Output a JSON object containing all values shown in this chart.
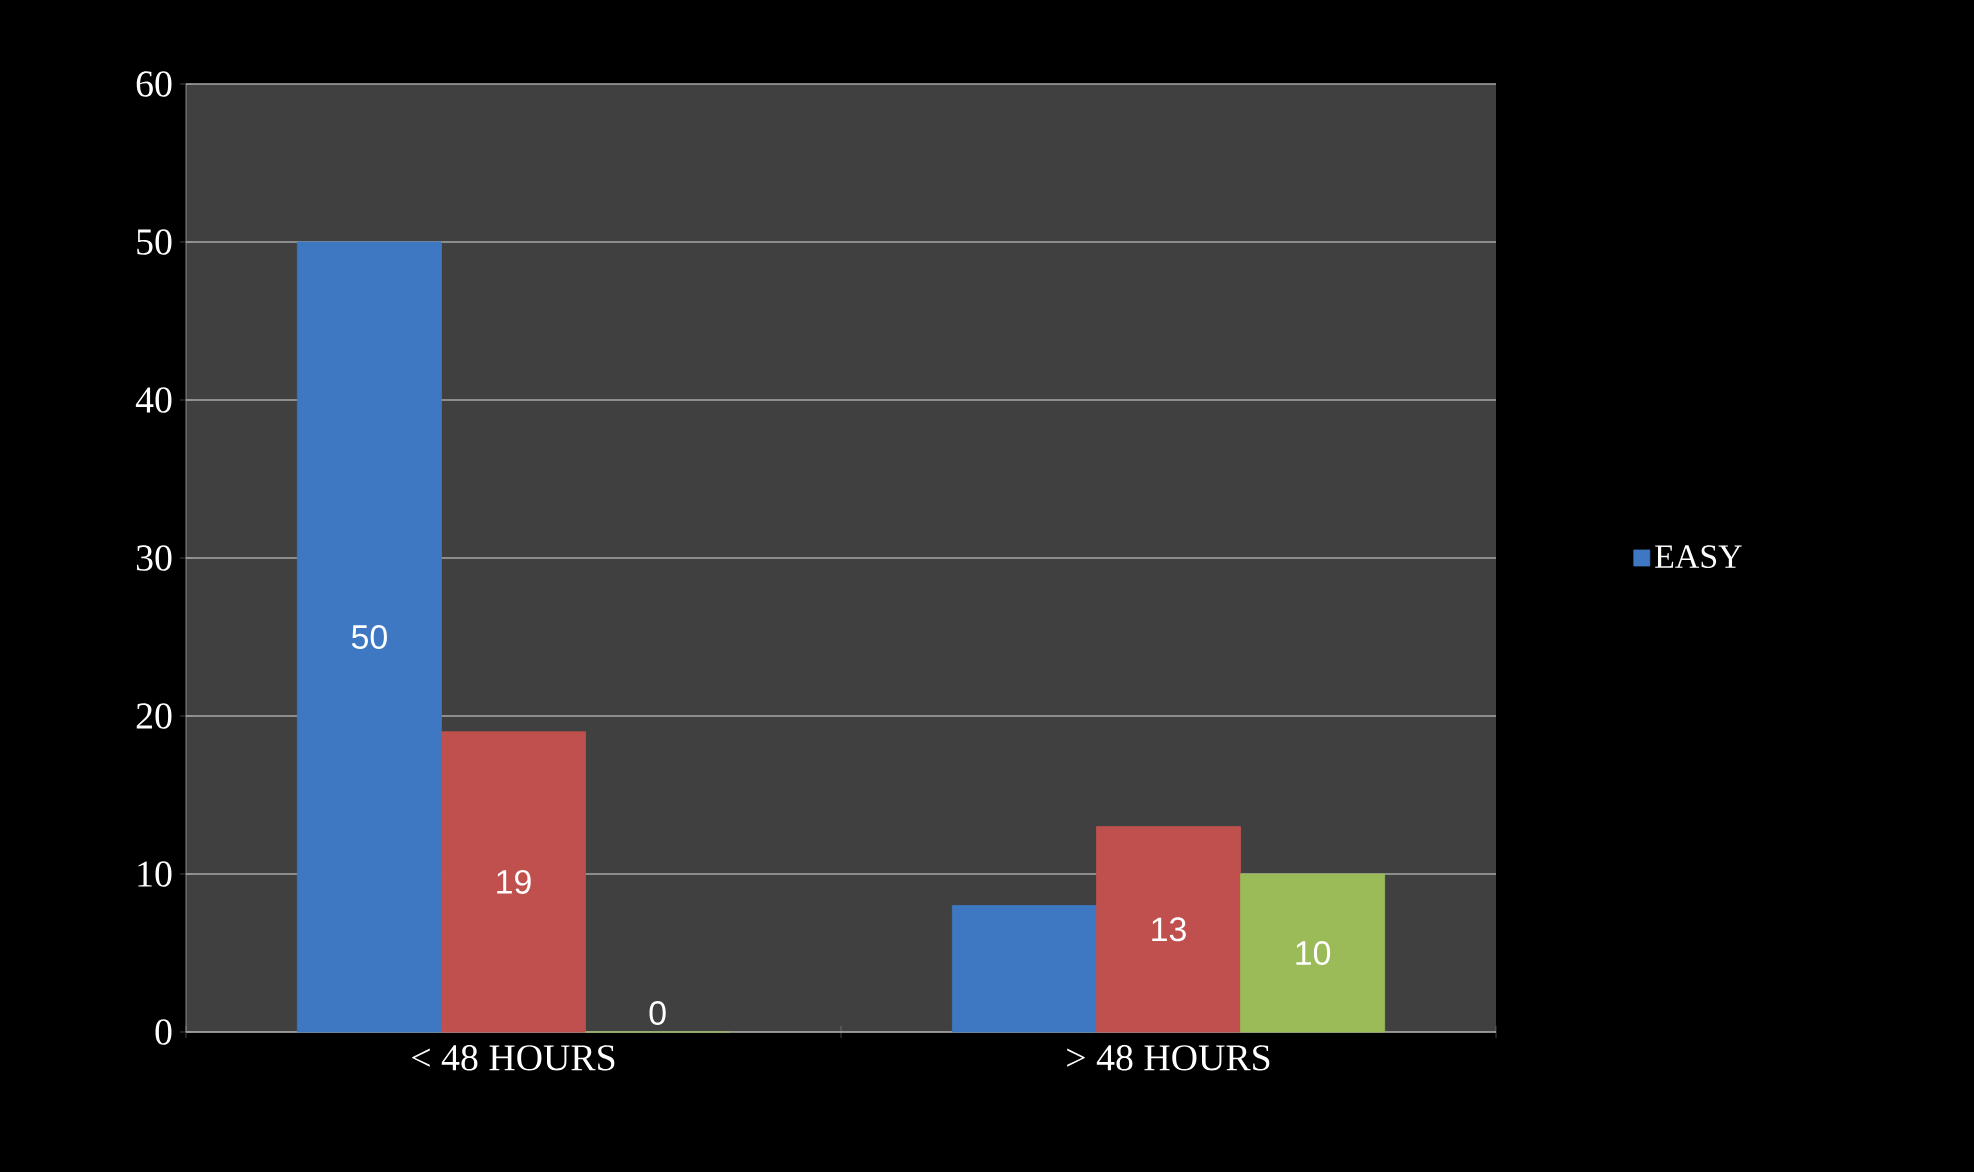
{
  "chart_data": {
    "type": "bar",
    "categories": [
      "< 48 HOURS",
      "> 48 HOURS"
    ],
    "series": [
      {
        "name": "EASY",
        "color": "#3f78c2",
        "values": [
          50,
          8
        ],
        "value_labels": [
          "50",
          null
        ]
      },
      {
        "color": "#c0504d",
        "values": [
          19,
          13
        ],
        "value_labels": [
          "19",
          "13"
        ]
      },
      {
        "color": "#9bbb59",
        "values": [
          0,
          10
        ],
        "value_labels": [
          "0",
          "10"
        ]
      }
    ],
    "ylim": [
      0,
      60
    ],
    "yticks": [
      0,
      10,
      20,
      30,
      40,
      50,
      60
    ],
    "grid": "y",
    "legend": "right"
  }
}
